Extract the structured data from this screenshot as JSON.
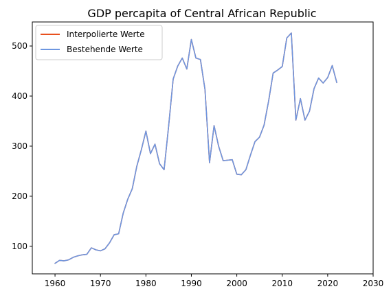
{
  "chart_data": {
    "type": "line",
    "title": "GDP percapita of Central African Republic",
    "xlabel": "",
    "ylabel": "",
    "xlim": [
      1955,
      2030
    ],
    "ylim": [
      45,
      548
    ],
    "xticks": [
      1960,
      1970,
      1980,
      1990,
      2000,
      2010,
      2020,
      2030
    ],
    "yticks": [
      100,
      200,
      300,
      400,
      500
    ],
    "grid": false,
    "legend_position": "top-left",
    "x": [
      1960,
      1961,
      1962,
      1963,
      1964,
      1965,
      1966,
      1967,
      1968,
      1969,
      1970,
      1971,
      1972,
      1973,
      1974,
      1975,
      1976,
      1977,
      1978,
      1979,
      1980,
      1981,
      1982,
      1983,
      1984,
      1985,
      1986,
      1987,
      1988,
      1989,
      1990,
      1991,
      1992,
      1993,
      1994,
      1995,
      1996,
      1997,
      1998,
      1999,
      2000,
      2001,
      2002,
      2003,
      2004,
      2005,
      2006,
      2007,
      2008,
      2009,
      2010,
      2011,
      2012,
      2013,
      2014,
      2015,
      2016,
      2017,
      2018,
      2019,
      2020,
      2021,
      2022
    ],
    "series": [
      {
        "name": "Interpolierte Werte",
        "color": "#e8501e",
        "values": [
          66,
          72,
          71,
          73,
          78,
          81,
          83,
          84,
          97,
          93,
          91,
          95,
          107,
          123,
          125,
          166,
          194,
          215,
          260,
          293,
          330,
          285,
          304,
          265,
          253,
          340,
          434,
          460,
          476,
          454,
          513,
          476,
          473,
          413,
          267,
          341,
          300,
          271,
          272,
          273,
          244,
          243,
          253,
          282,
          309,
          318,
          342,
          390,
          446,
          452,
          459,
          516,
          526,
          352,
          395,
          352,
          370,
          415,
          436,
          426,
          437,
          461,
          427
        ]
      },
      {
        "name": "Bestehende Werte",
        "color": "#6d96e0",
        "values": [
          66,
          72,
          71,
          73,
          78,
          81,
          83,
          84,
          97,
          93,
          91,
          95,
          107,
          123,
          125,
          166,
          194,
          215,
          260,
          293,
          330,
          285,
          304,
          265,
          253,
          340,
          434,
          460,
          476,
          454,
          513,
          476,
          473,
          413,
          267,
          341,
          300,
          271,
          272,
          273,
          244,
          243,
          253,
          282,
          309,
          318,
          342,
          390,
          446,
          452,
          459,
          516,
          526,
          352,
          395,
          352,
          370,
          415,
          436,
          426,
          437,
          461,
          427
        ]
      }
    ]
  }
}
